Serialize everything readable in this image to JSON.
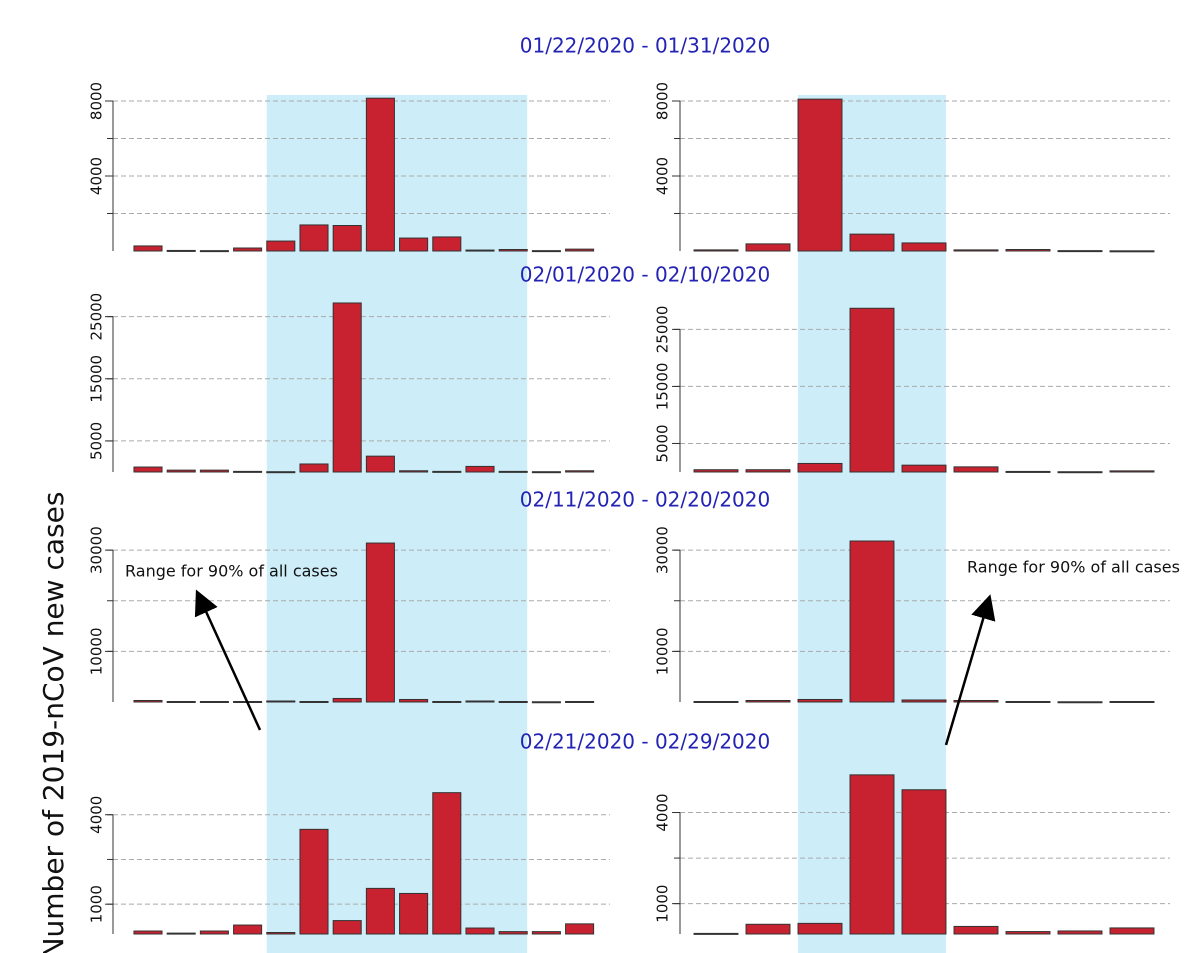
{
  "ylabel": "Number of 2019-nCoV new cases",
  "periods": [
    "01/22/2020 - 01/31/2020",
    "02/01/2020 - 02/10/2020",
    "02/11/2020 - 02/20/2020",
    "02/21/2020 - 02/29/2020"
  ],
  "annotation": "Range for 90% of all cases",
  "chart_data": [
    {
      "type": "bar",
      "categories": [
        null,
        null,
        null,
        null,
        null,
        null,
        null,
        null,
        null,
        null,
        null,
        null,
        null,
        null
      ],
      "values": [
        270,
        30,
        20,
        160,
        530,
        1390,
        1360,
        8150,
        690,
        750,
        50,
        80,
        20,
        100
      ],
      "ylim": [
        0,
        8400
      ],
      "yticks": [
        4000,
        8000
      ],
      "grid_lines": [
        2000,
        4000,
        6000,
        8000
      ],
      "color": "#c8212f",
      "highlight": [
        4,
        11
      ]
    },
    {
      "type": "bar",
      "categories": [
        null,
        null,
        null,
        null,
        null,
        null,
        null,
        null,
        null
      ],
      "values": [
        60,
        380,
        8100,
        900,
        430,
        60,
        80,
        20,
        10
      ],
      "ylim": [
        0,
        8400
      ],
      "yticks": [
        4000,
        8000
      ],
      "grid_lines": [
        2000,
        4000,
        6000,
        8000
      ],
      "color": "#c8212f",
      "highlight": [
        2,
        4
      ]
    },
    {
      "type": "bar",
      "categories": [
        null,
        null,
        null,
        null,
        null,
        null,
        null,
        null,
        null,
        null,
        null,
        null,
        null,
        null
      ],
      "values": [
        800,
        300,
        300,
        100,
        50,
        1290,
        27200,
        2550,
        200,
        100,
        900,
        100,
        50,
        200
      ],
      "ylim": [
        0,
        28000
      ],
      "yticks": [
        5000,
        15000,
        25000
      ],
      "grid_lines": [
        5000,
        15000,
        25000
      ],
      "color": "#c8212f",
      "highlight": [
        4,
        11
      ]
    },
    {
      "type": "bar",
      "categories": [
        null,
        null,
        null,
        null,
        null,
        null,
        null,
        null,
        null
      ],
      "values": [
        400,
        400,
        1500,
        28700,
        1200,
        900,
        100,
        50,
        200
      ],
      "ylim": [
        0,
        30500
      ],
      "yticks": [
        5000,
        15000,
        25000
      ],
      "grid_lines": [
        5000,
        15000,
        25000
      ],
      "color": "#c8212f",
      "highlight": [
        2,
        4
      ]
    },
    {
      "type": "bar",
      "categories": [
        null,
        null,
        null,
        null,
        null,
        null,
        null,
        null,
        null,
        null,
        null,
        null,
        null,
        null
      ],
      "values": [
        300,
        100,
        100,
        100,
        200,
        100,
        700,
        31400,
        500,
        100,
        200,
        100,
        50,
        100
      ],
      "ylim": [
        0,
        32000
      ],
      "yticks": [
        10000,
        30000
      ],
      "grid_lines": [
        10000,
        20000,
        30000
      ],
      "color": "#c8212f",
      "highlight": [
        4,
        11
      ]
    },
    {
      "type": "bar",
      "categories": [
        null,
        null,
        null,
        null,
        null,
        null,
        null,
        null,
        null
      ],
      "values": [
        100,
        300,
        500,
        31800,
        400,
        300,
        100,
        50,
        100
      ],
      "ylim": [
        0,
        32000
      ],
      "yticks": [
        10000,
        30000
      ],
      "grid_lines": [
        10000,
        20000,
        30000
      ],
      "color": "#c8212f",
      "highlight": [
        2,
        4
      ]
    },
    {
      "type": "bar",
      "categories": [
        null,
        null,
        null,
        null,
        null,
        null,
        null,
        null,
        null,
        null,
        null,
        null,
        null,
        null
      ],
      "values": [
        100,
        30,
        100,
        300,
        50,
        3510,
        450,
        1530,
        1360,
        4740,
        200,
        80,
        80,
        340
      ],
      "ylim": [
        0,
        5500
      ],
      "yticks": [
        1000,
        4000
      ],
      "grid_lines": [
        1000,
        2500,
        4000
      ],
      "color": "#c8212f",
      "highlight": [
        4,
        11
      ]
    },
    {
      "type": "bar",
      "categories": [
        null,
        null,
        null,
        null,
        null,
        null,
        null,
        null,
        null
      ],
      "values": [
        20,
        320,
        350,
        5240,
        4750,
        250,
        80,
        100,
        200
      ],
      "ylim": [
        0,
        5400
      ],
      "yticks": [
        1000,
        4000
      ],
      "grid_lines": [
        1000,
        2500,
        4000
      ],
      "color": "#c8212f",
      "highlight": [
        2,
        4
      ]
    }
  ]
}
